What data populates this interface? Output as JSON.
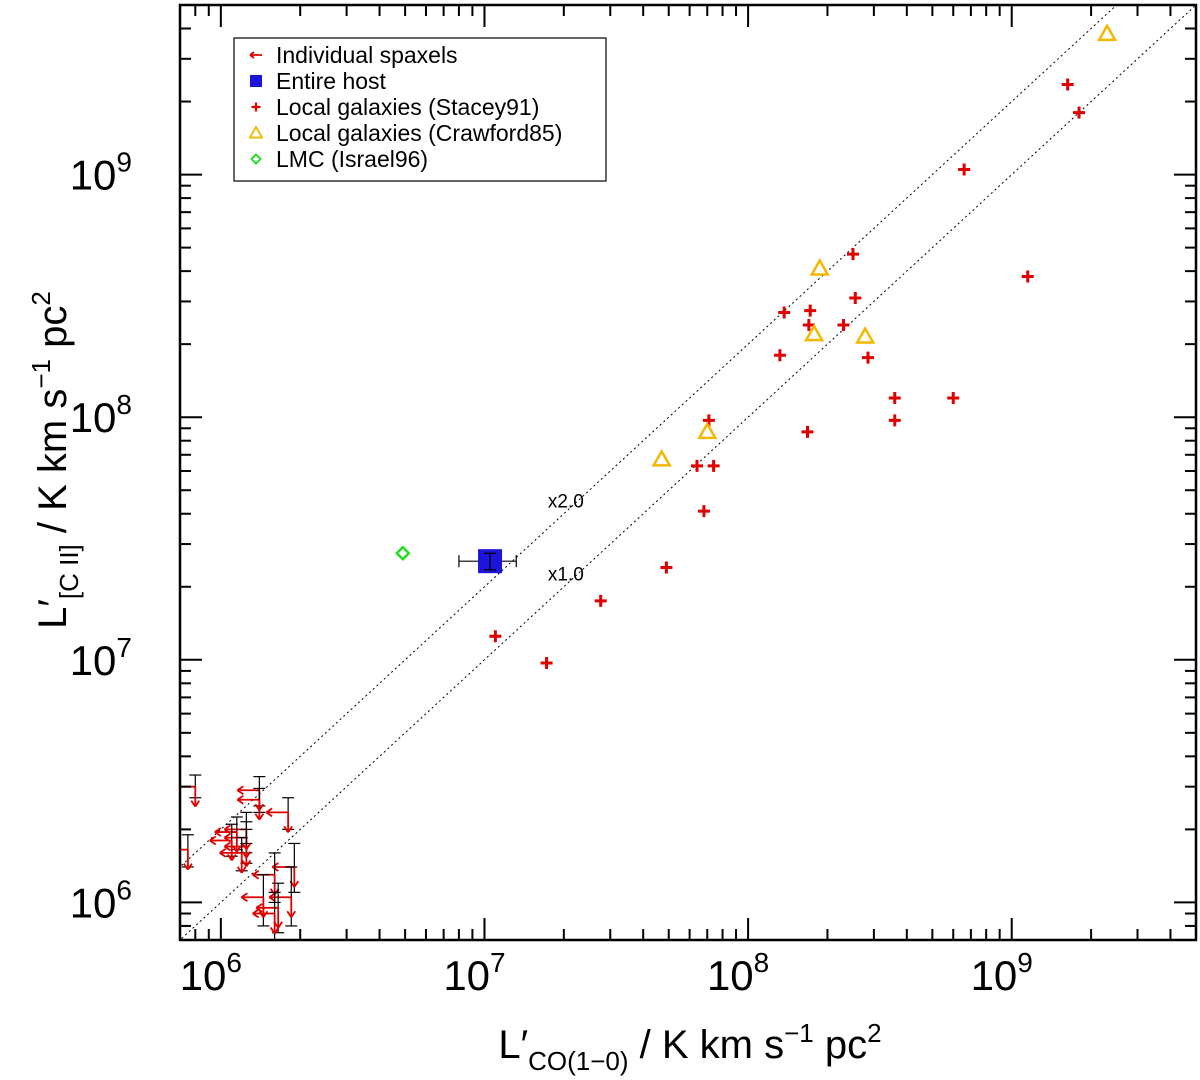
{
  "chart_data": {
    "type": "scatter",
    "x_scale": "log",
    "y_scale": "log",
    "xlim": [
      700000,
      5000000000
    ],
    "ylim": [
      700000,
      5000000000
    ],
    "xlabel": {
      "main": "L′",
      "sub": "CO(1−0)",
      "rest": " / K km s",
      "sup1": "−1",
      "rest2": " pc",
      "sup2": "2"
    },
    "ylabel": {
      "main": "L′",
      "sub": "[C II]",
      "rest": " / K km s",
      "sup1": "−1",
      "rest2": " pc",
      "sup2": "2"
    },
    "ticks": [
      {
        "value": 1000000,
        "base": "10",
        "exp": "6"
      },
      {
        "value": 10000000,
        "base": "10",
        "exp": "7"
      },
      {
        "value": 100000000,
        "base": "10",
        "exp": "8"
      },
      {
        "value": 1000000000,
        "base": "10",
        "exp": "9"
      }
    ],
    "reference_lines": [
      {
        "label": "x2.0",
        "factor": 2.0,
        "label_x": 20000000
      },
      {
        "label": "x1.0",
        "factor": 1.0,
        "label_x": 20000000
      }
    ],
    "legend": {
      "placement": "top-left",
      "entries": [
        {
          "label": "Individual spaxels",
          "marker": "arrow-left",
          "color": "#e00000"
        },
        {
          "label": "Entire host",
          "marker": "square",
          "color": "#1c14d8"
        },
        {
          "label": "Local galaxies (Stacey91)",
          "marker": "plus",
          "color": "#e00000"
        },
        {
          "label": "Local galaxies (Crawford85)",
          "marker": "triangle",
          "color": "#f5b800"
        },
        {
          "label": "LMC (Israel96)",
          "marker": "diamond",
          "color": "#22dd22"
        }
      ]
    },
    "series": [
      {
        "name": "Individual spaxels",
        "marker": "upper-limit",
        "color": "#e00000",
        "points": [
          {
            "x": 800000,
            "y": 3000000,
            "yerr": [
              2700000,
              3350000
            ]
          },
          {
            "x": 1400000,
            "y": 2900000,
            "yerr": [
              2500000,
              3300000
            ]
          },
          {
            "x": 1400000,
            "y": 2650000,
            "yerr": [
              2350000,
              2950000
            ]
          },
          {
            "x": 1800000,
            "y": 2350000,
            "yerr": [
              2000000,
              2700000
            ]
          },
          {
            "x": 1250000,
            "y": 2000000,
            "yerr": [
              1750000,
              2350000
            ]
          },
          {
            "x": 1150000,
            "y": 1950000,
            "yerr": [
              1650000,
              2250000
            ]
          },
          {
            "x": 1250000,
            "y": 1850000,
            "yerr": [
              1600000,
              2150000
            ]
          },
          {
            "x": 1100000,
            "y": 1800000,
            "yerr": [
              1550000,
              2100000
            ]
          },
          {
            "x": 1250000,
            "y": 1700000,
            "yerr": [
              1450000,
              2000000
            ]
          },
          {
            "x": 1200000,
            "y": 1600000,
            "yerr": [
              1350000,
              1850000
            ]
          },
          {
            "x": 750000,
            "y": 1650000,
            "yerr": [
              1400000,
              1900000
            ]
          },
          {
            "x": 1900000,
            "y": 1400000,
            "yerr": [
              1100000,
              1750000
            ]
          },
          {
            "x": 1600000,
            "y": 1300000,
            "yerr": [
              1000000,
              1600000
            ]
          },
          {
            "x": 1850000,
            "y": 1050000,
            "yerr": [
              800000,
              1400000
            ]
          },
          {
            "x": 1650000,
            "y": 950000,
            "yerr": [
              750000,
              1200000
            ]
          },
          {
            "x": 1600000,
            "y": 900000,
            "yerr": [
              700000,
              1100000
            ]
          },
          {
            "x": 1450000,
            "y": 1050000,
            "yerr": [
              800000,
              1300000
            ]
          }
        ]
      },
      {
        "name": "Entire host",
        "marker": "square",
        "color": "#1c14d8",
        "points": [
          {
            "x": 10500000,
            "y": 25500000,
            "xerr": [
              8000000,
              13200000
            ],
            "yerr": [
              23500000,
              27500000
            ]
          }
        ]
      },
      {
        "name": "Local galaxies (Stacey91)",
        "marker": "plus",
        "color": "#e00000",
        "points": [
          {
            "x": 1630000000,
            "y": 2350000000
          },
          {
            "x": 1800000000,
            "y": 1800000000
          },
          {
            "x": 660000000,
            "y": 1050000000
          },
          {
            "x": 1150000000,
            "y": 380000000
          },
          {
            "x": 250000000,
            "y": 470000000
          },
          {
            "x": 255000000,
            "y": 310000000
          },
          {
            "x": 137000000,
            "y": 270000000
          },
          {
            "x": 172000000,
            "y": 275000000
          },
          {
            "x": 170000000,
            "y": 240000000
          },
          {
            "x": 230000000,
            "y": 240000000
          },
          {
            "x": 132000000,
            "y": 180000000
          },
          {
            "x": 285000000,
            "y": 176000000
          },
          {
            "x": 360000000,
            "y": 120000000
          },
          {
            "x": 600000000,
            "y": 120000000
          },
          {
            "x": 360000000,
            "y": 97000000
          },
          {
            "x": 168000000,
            "y": 87000000
          },
          {
            "x": 71000000,
            "y": 97000000
          },
          {
            "x": 64000000,
            "y": 63000000
          },
          {
            "x": 74000000,
            "y": 63000000
          },
          {
            "x": 68000000,
            "y": 41000000
          },
          {
            "x": 49000000,
            "y": 24000000
          },
          {
            "x": 27600000,
            "y": 17500000
          },
          {
            "x": 11000000,
            "y": 12500000
          },
          {
            "x": 17200000,
            "y": 9700000
          }
        ]
      },
      {
        "name": "Local galaxies (Crawford85)",
        "marker": "triangle",
        "color": "#f5b800",
        "points": [
          {
            "x": 2300000000,
            "y": 3800000000
          },
          {
            "x": 187000000,
            "y": 410000000
          },
          {
            "x": 178000000,
            "y": 220000000
          },
          {
            "x": 278000000,
            "y": 215000000
          },
          {
            "x": 70000000,
            "y": 87000000
          },
          {
            "x": 47000000,
            "y": 67000000
          }
        ]
      },
      {
        "name": "LMC (Israel96)",
        "marker": "diamond",
        "color": "#22dd22",
        "points": [
          {
            "x": 4900000,
            "y": 27500000
          }
        ]
      }
    ]
  }
}
